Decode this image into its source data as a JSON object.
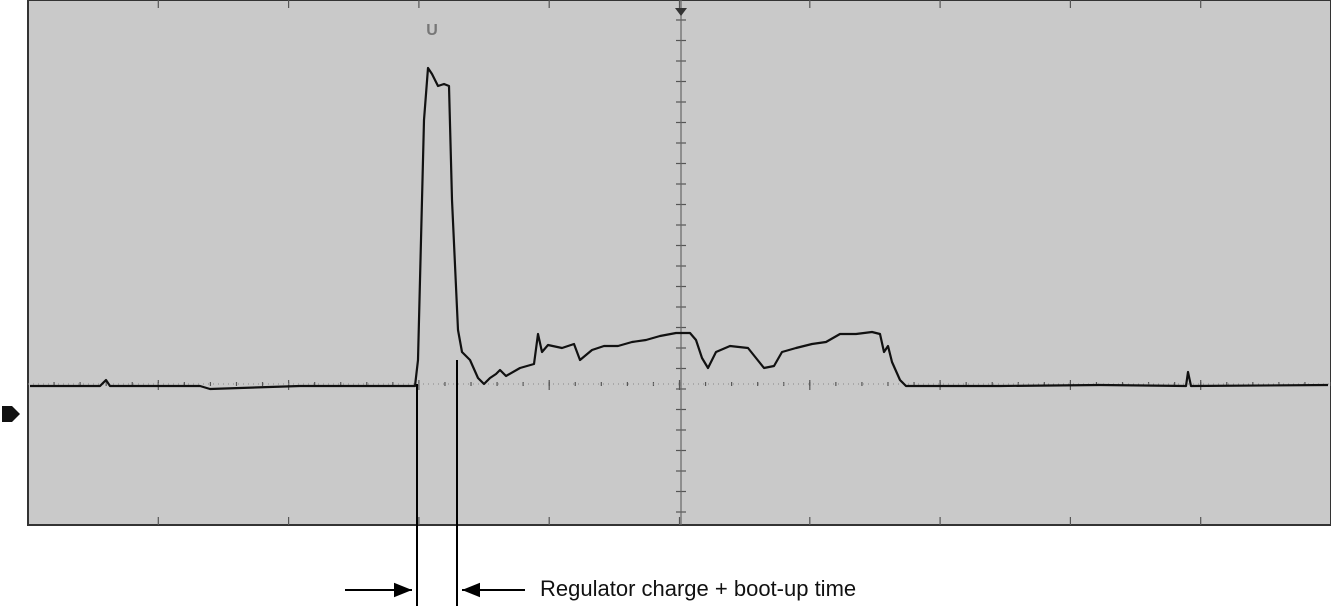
{
  "trigger_marker": "U",
  "annotation": "Regulator charge + boot-up time"
}
